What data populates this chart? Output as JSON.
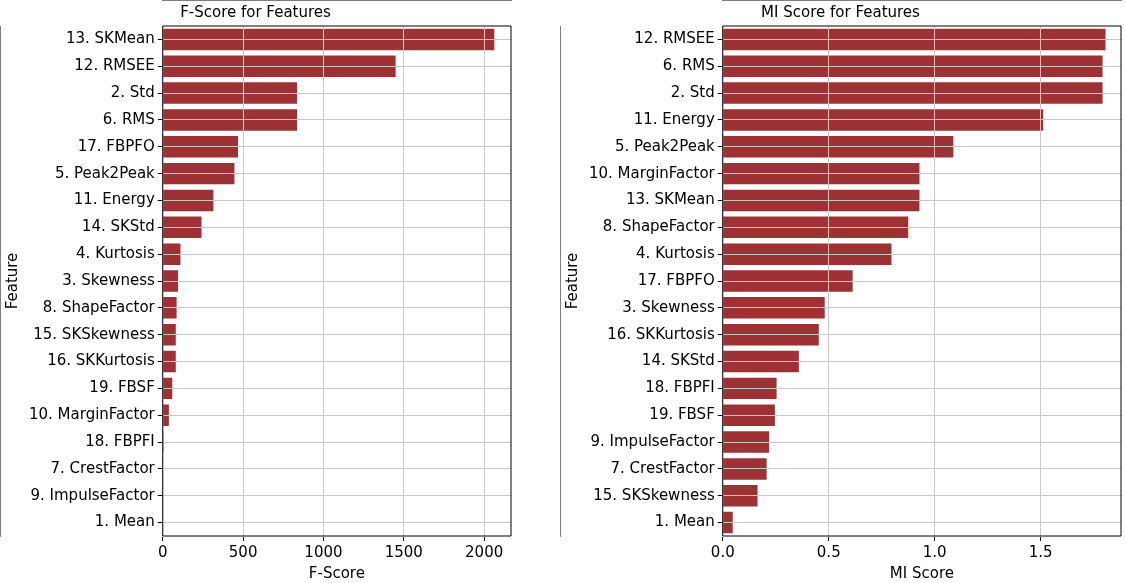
{
  "chart_data": [
    {
      "type": "bar",
      "orientation": "horizontal",
      "title": "F-Score for Features",
      "xlabel": "F-Score",
      "ylabel": "Feature",
      "categories": [
        "13. SKMean",
        "12. RMSEE",
        "2. Std",
        "6. RMS",
        "17. FBPFO",
        "5. Peak2Peak",
        "11. Energy",
        "14. SKStd",
        "4. Kurtosis",
        "3. Skewness",
        "8. ShapeFactor",
        "15. SKSkewness",
        "16. SKKurtosis",
        "19. FBSF",
        "10. MarginFactor",
        "18. FBPFI",
        "7. CrestFactor",
        "9. ImpulseFactor",
        "1. Mean"
      ],
      "values": [
        2063,
        1449,
        836,
        836,
        468,
        446,
        315,
        241,
        110,
        95,
        86,
        81,
        81,
        59,
        38,
        5,
        0,
        0,
        0
      ],
      "color": "#9e3134",
      "xlim": [
        0,
        2167
      ],
      "xticks": [
        0,
        500,
        1000,
        1500,
        2000
      ],
      "grid": true
    },
    {
      "type": "bar",
      "orientation": "horizontal",
      "title": "MI Score for Features",
      "xlabel": "MI Score",
      "ylabel": "Feature",
      "categories": [
        "12. RMSEE",
        "6. RMS",
        "2. Std",
        "11. Energy",
        "5. Peak2Peak",
        "10. MarginFactor",
        "13. SKMean",
        "8. ShapeFactor",
        "4. Kurtosis",
        "17. FBPFO",
        "3. Skewness",
        "16. SKKurtosis",
        "14. SKStd",
        "18. FBPFI",
        "19. FBSF",
        "9. ImpulseFactor",
        "7. CrestFactor",
        "15. SKSkewness",
        "1. Mean"
      ],
      "values": [
        1.806,
        1.792,
        1.792,
        1.512,
        1.088,
        0.928,
        0.928,
        0.875,
        0.796,
        0.613,
        0.481,
        0.453,
        0.359,
        0.254,
        0.246,
        0.219,
        0.207,
        0.164,
        0.047
      ],
      "color": "#9e3134",
      "xlim": [
        0,
        1.879
      ],
      "xticks": [
        {
          "value": 0,
          "label": "0.0"
        },
        0.5,
        {
          "value": 1,
          "label": "1.0"
        },
        1.5
      ],
      "grid": true
    }
  ]
}
